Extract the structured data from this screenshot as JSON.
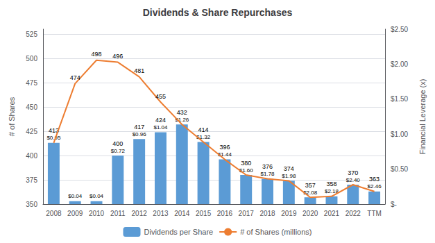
{
  "chart_data": {
    "type": "bar",
    "title": "Dividends & Share Repurchases",
    "categories": [
      "2008",
      "2009",
      "2010",
      "2011",
      "2012",
      "2013",
      "2014",
      "2015",
      "2016",
      "2017",
      "2018",
      "2019",
      "2020",
      "2021",
      "2022",
      "TTM"
    ],
    "series": [
      {
        "name": "Dividends per Share",
        "type": "bar",
        "color": "#5b9bd5",
        "values": [
          413,
          353,
          353,
          400,
          417,
          424,
          432,
          414,
          396,
          380,
          376,
          374,
          357,
          358,
          370,
          363
        ],
        "value_labels": [
          "413",
          null,
          null,
          "400",
          "417",
          "424",
          "432",
          "414",
          "396",
          "380",
          "376",
          "374",
          "357",
          "358",
          "370",
          "363"
        ],
        "dividends_per_share": [
          "$0.95",
          "$0.04",
          "$0.04",
          "$0.72",
          "$0.96",
          "$1.04",
          "$1.26",
          "$1.32",
          "$1.44",
          "$1.60",
          "$1.78",
          "$1.98",
          "$2.08",
          "$2.18",
          "$2.40",
          "$2.46"
        ]
      },
      {
        "name": "# of Shares (millions)",
        "type": "line",
        "color": "#ED7D31",
        "values": [
          413,
          474,
          498,
          496,
          481,
          455,
          432,
          414,
          396,
          380,
          376,
          374,
          357,
          358,
          370,
          363
        ],
        "value_labels": [
          null,
          "474",
          "498",
          "496",
          "481",
          "455",
          null,
          null,
          null,
          null,
          null,
          null,
          null,
          null,
          null,
          null
        ]
      }
    ],
    "ylabel": "# of Shares",
    "y2label": "Financial Leverage (x)",
    "ylim": [
      350,
      530
    ],
    "yticks": [
      350,
      375,
      400,
      425,
      450,
      475,
      500,
      525
    ],
    "y2lim": [
      0,
      2.5
    ],
    "y2ticks": [
      {
        "value": 0,
        "label": "$-"
      },
      {
        "value": 0.5,
        "label": "$0.50"
      },
      {
        "value": 1.0,
        "label": "$1.00"
      },
      {
        "value": 1.5,
        "label": "$1.50"
      },
      {
        "value": 2.0,
        "label": "$2.00"
      },
      {
        "value": 2.5,
        "label": "$2.50"
      }
    ],
    "grid": true,
    "legend": "bottom",
    "data_labels": true
  }
}
